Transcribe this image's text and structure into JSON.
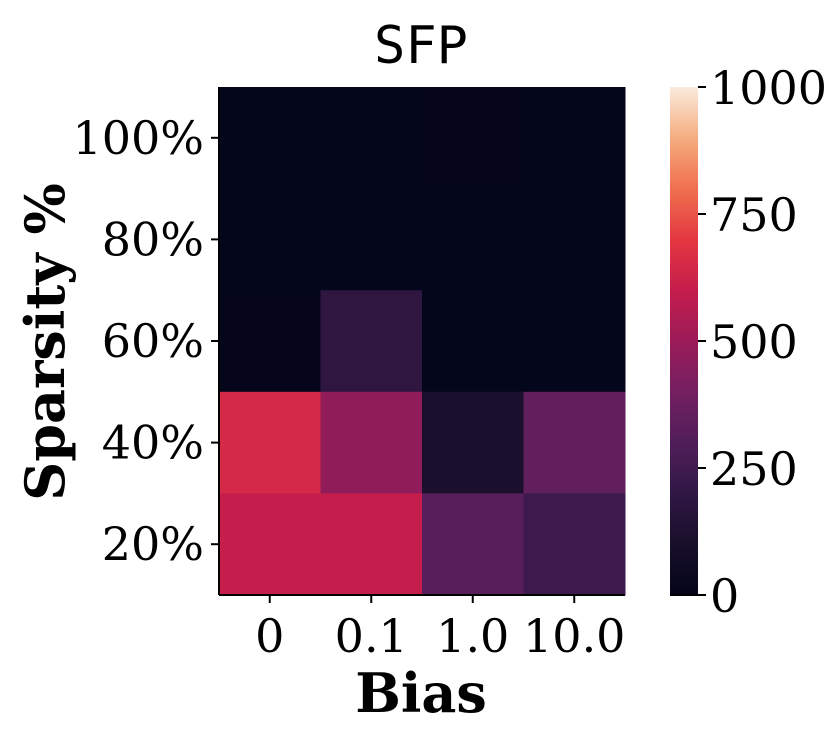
{
  "chart_data": {
    "type": "heatmap",
    "title": "SFP",
    "xlabel": "Bias",
    "ylabel": "Sparsity %",
    "x_categories": [
      "0",
      "0.1",
      "1.0",
      "10.0"
    ],
    "y_categories": [
      "100%",
      "80%",
      "60%",
      "40%",
      "20%"
    ],
    "values": [
      [
        5,
        5,
        8,
        5
      ],
      [
        5,
        5,
        5,
        5
      ],
      [
        10,
        190,
        5,
        5
      ],
      [
        650,
        470,
        110,
        350
      ],
      [
        600,
        600,
        320,
        240
      ]
    ],
    "colorbar": {
      "range": [
        0,
        1000
      ],
      "ticks": [
        "0",
        "250",
        "500",
        "750",
        "1000"
      ],
      "colormap": "rocket"
    },
    "grid": false
  }
}
